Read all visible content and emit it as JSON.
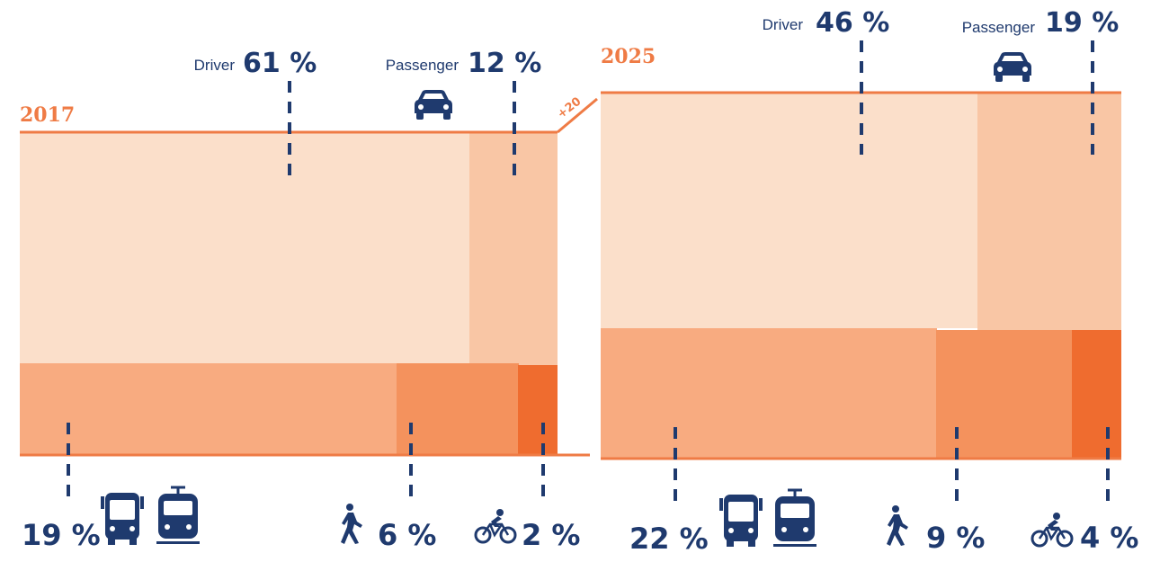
{
  "chart_data": [
    {
      "type": "area",
      "year_label": "2017",
      "growth_label": "+20",
      "modes": [
        {
          "key": "driver",
          "label": "Driver",
          "value_label": "61 %",
          "value": 61
        },
        {
          "key": "passenger",
          "label": "Passenger",
          "value_label": "12 %",
          "value": 12
        },
        {
          "key": "public_transport",
          "label": "",
          "value_label": "19 %",
          "value": 19
        },
        {
          "key": "walk",
          "label": "",
          "value_label": "6 %",
          "value": 6
        },
        {
          "key": "bike",
          "label": "",
          "value_label": "2 %",
          "value": 2
        }
      ]
    },
    {
      "type": "area",
      "year_label": "2025",
      "modes": [
        {
          "key": "driver",
          "label": "Driver",
          "value_label": "46 %",
          "value": 46
        },
        {
          "key": "passenger",
          "label": "Passenger",
          "value_label": "19 %",
          "value": 19
        },
        {
          "key": "public_transport",
          "label": "",
          "value_label": "22 %",
          "value": 22
        },
        {
          "key": "walk",
          "label": "",
          "value_label": "9 %",
          "value": 9
        },
        {
          "key": "bike",
          "label": "",
          "value_label": "4 %",
          "value": 4
        }
      ]
    }
  ],
  "colors": {
    "driver": "#fbdfca",
    "passenger": "#f9c6a5",
    "public_transport": "#f8ab80",
    "walk": "#f4925d",
    "bike": "#ef6c2f",
    "line": "#ef7b45",
    "label": "#1f3a6e"
  },
  "icons": [
    "car-icon",
    "bus-icon",
    "tram-icon",
    "pedestrian-icon",
    "bicycle-icon"
  ]
}
